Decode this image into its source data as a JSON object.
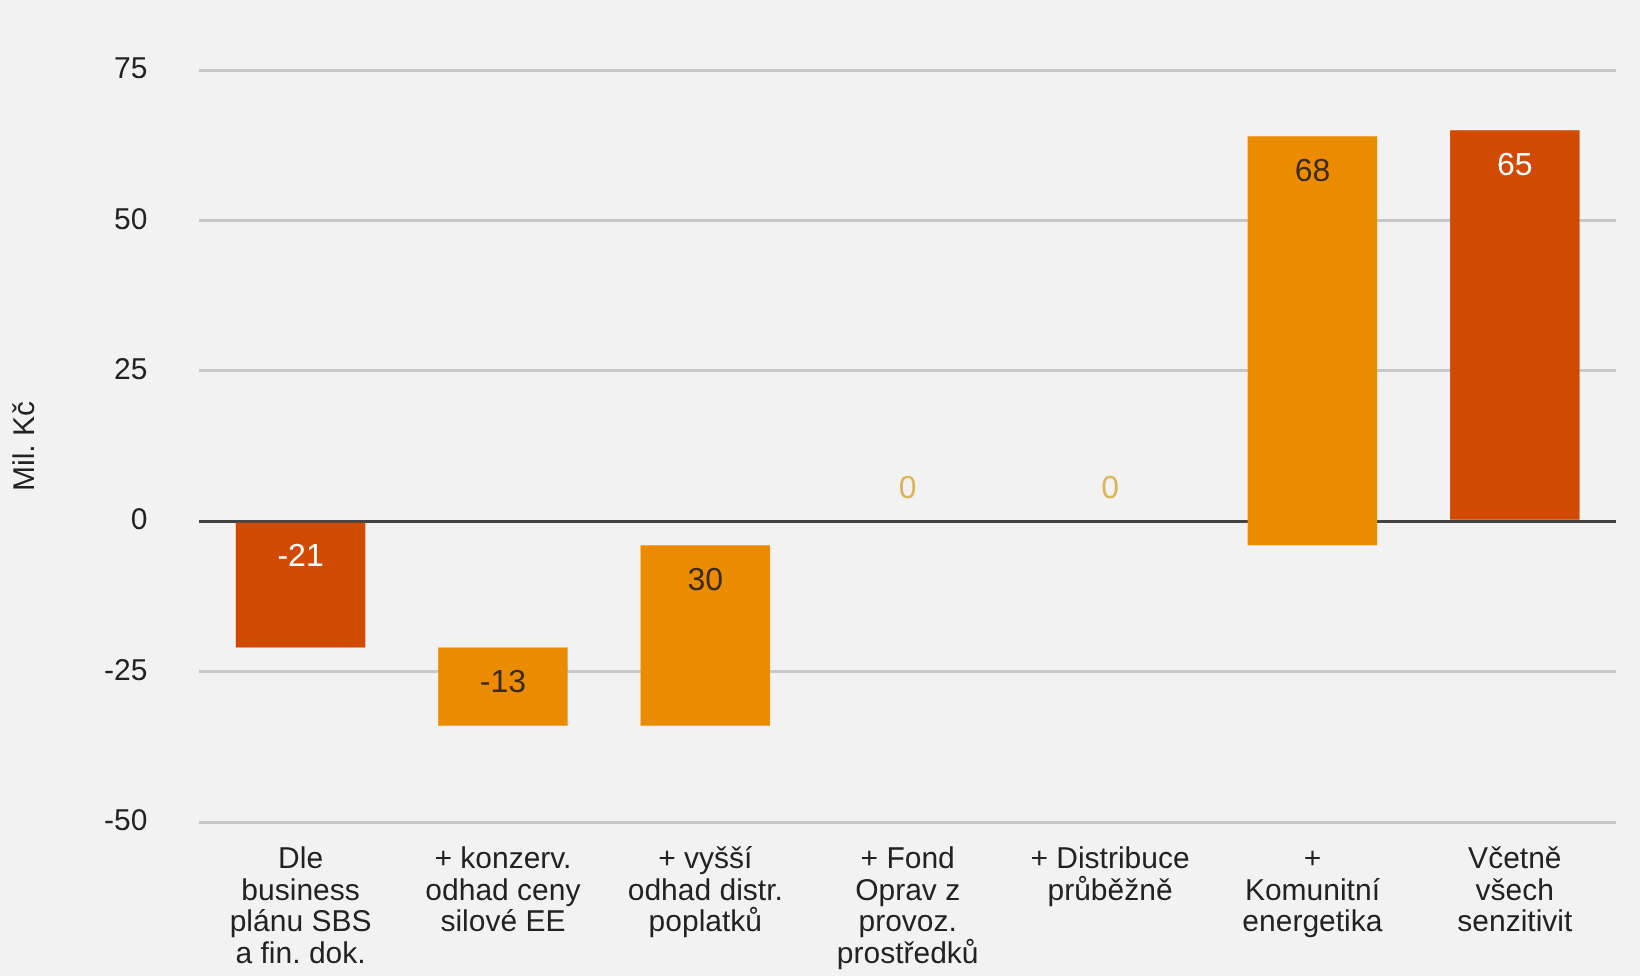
{
  "chart_data": {
    "type": "bar",
    "ylabel": "Mil. Kč",
    "categories": [
      "Dle\nbusiness\nplánu SBS\na fin. dok.",
      "+ konzerv.\nodhad ceny\nsilové EE",
      "+ vyšší\nodhad distr.\npoplatků",
      "+ Fond\nOprav z\nprovoz.\nprostředků",
      "+ Distribuce\nprůběžně",
      "+\nKomunitní\nenergetika",
      "Včetně\nvšech\nsenzitivit"
    ],
    "values": [
      -21,
      -13,
      30,
      0,
      0,
      68,
      65
    ],
    "base": [
      0,
      -21,
      -34,
      null,
      null,
      -4,
      0
    ],
    "colors": [
      "#d04a02",
      "#eb8c00",
      "#eb8c00",
      "#eb8c00",
      "#eb8c00",
      "#eb8c00",
      "#d04a02"
    ],
    "ylim": [
      -50,
      75
    ],
    "yticks": [
      -50,
      -25,
      0,
      25,
      50,
      75
    ],
    "grid": "y",
    "data_labels": true,
    "legend": false
  }
}
